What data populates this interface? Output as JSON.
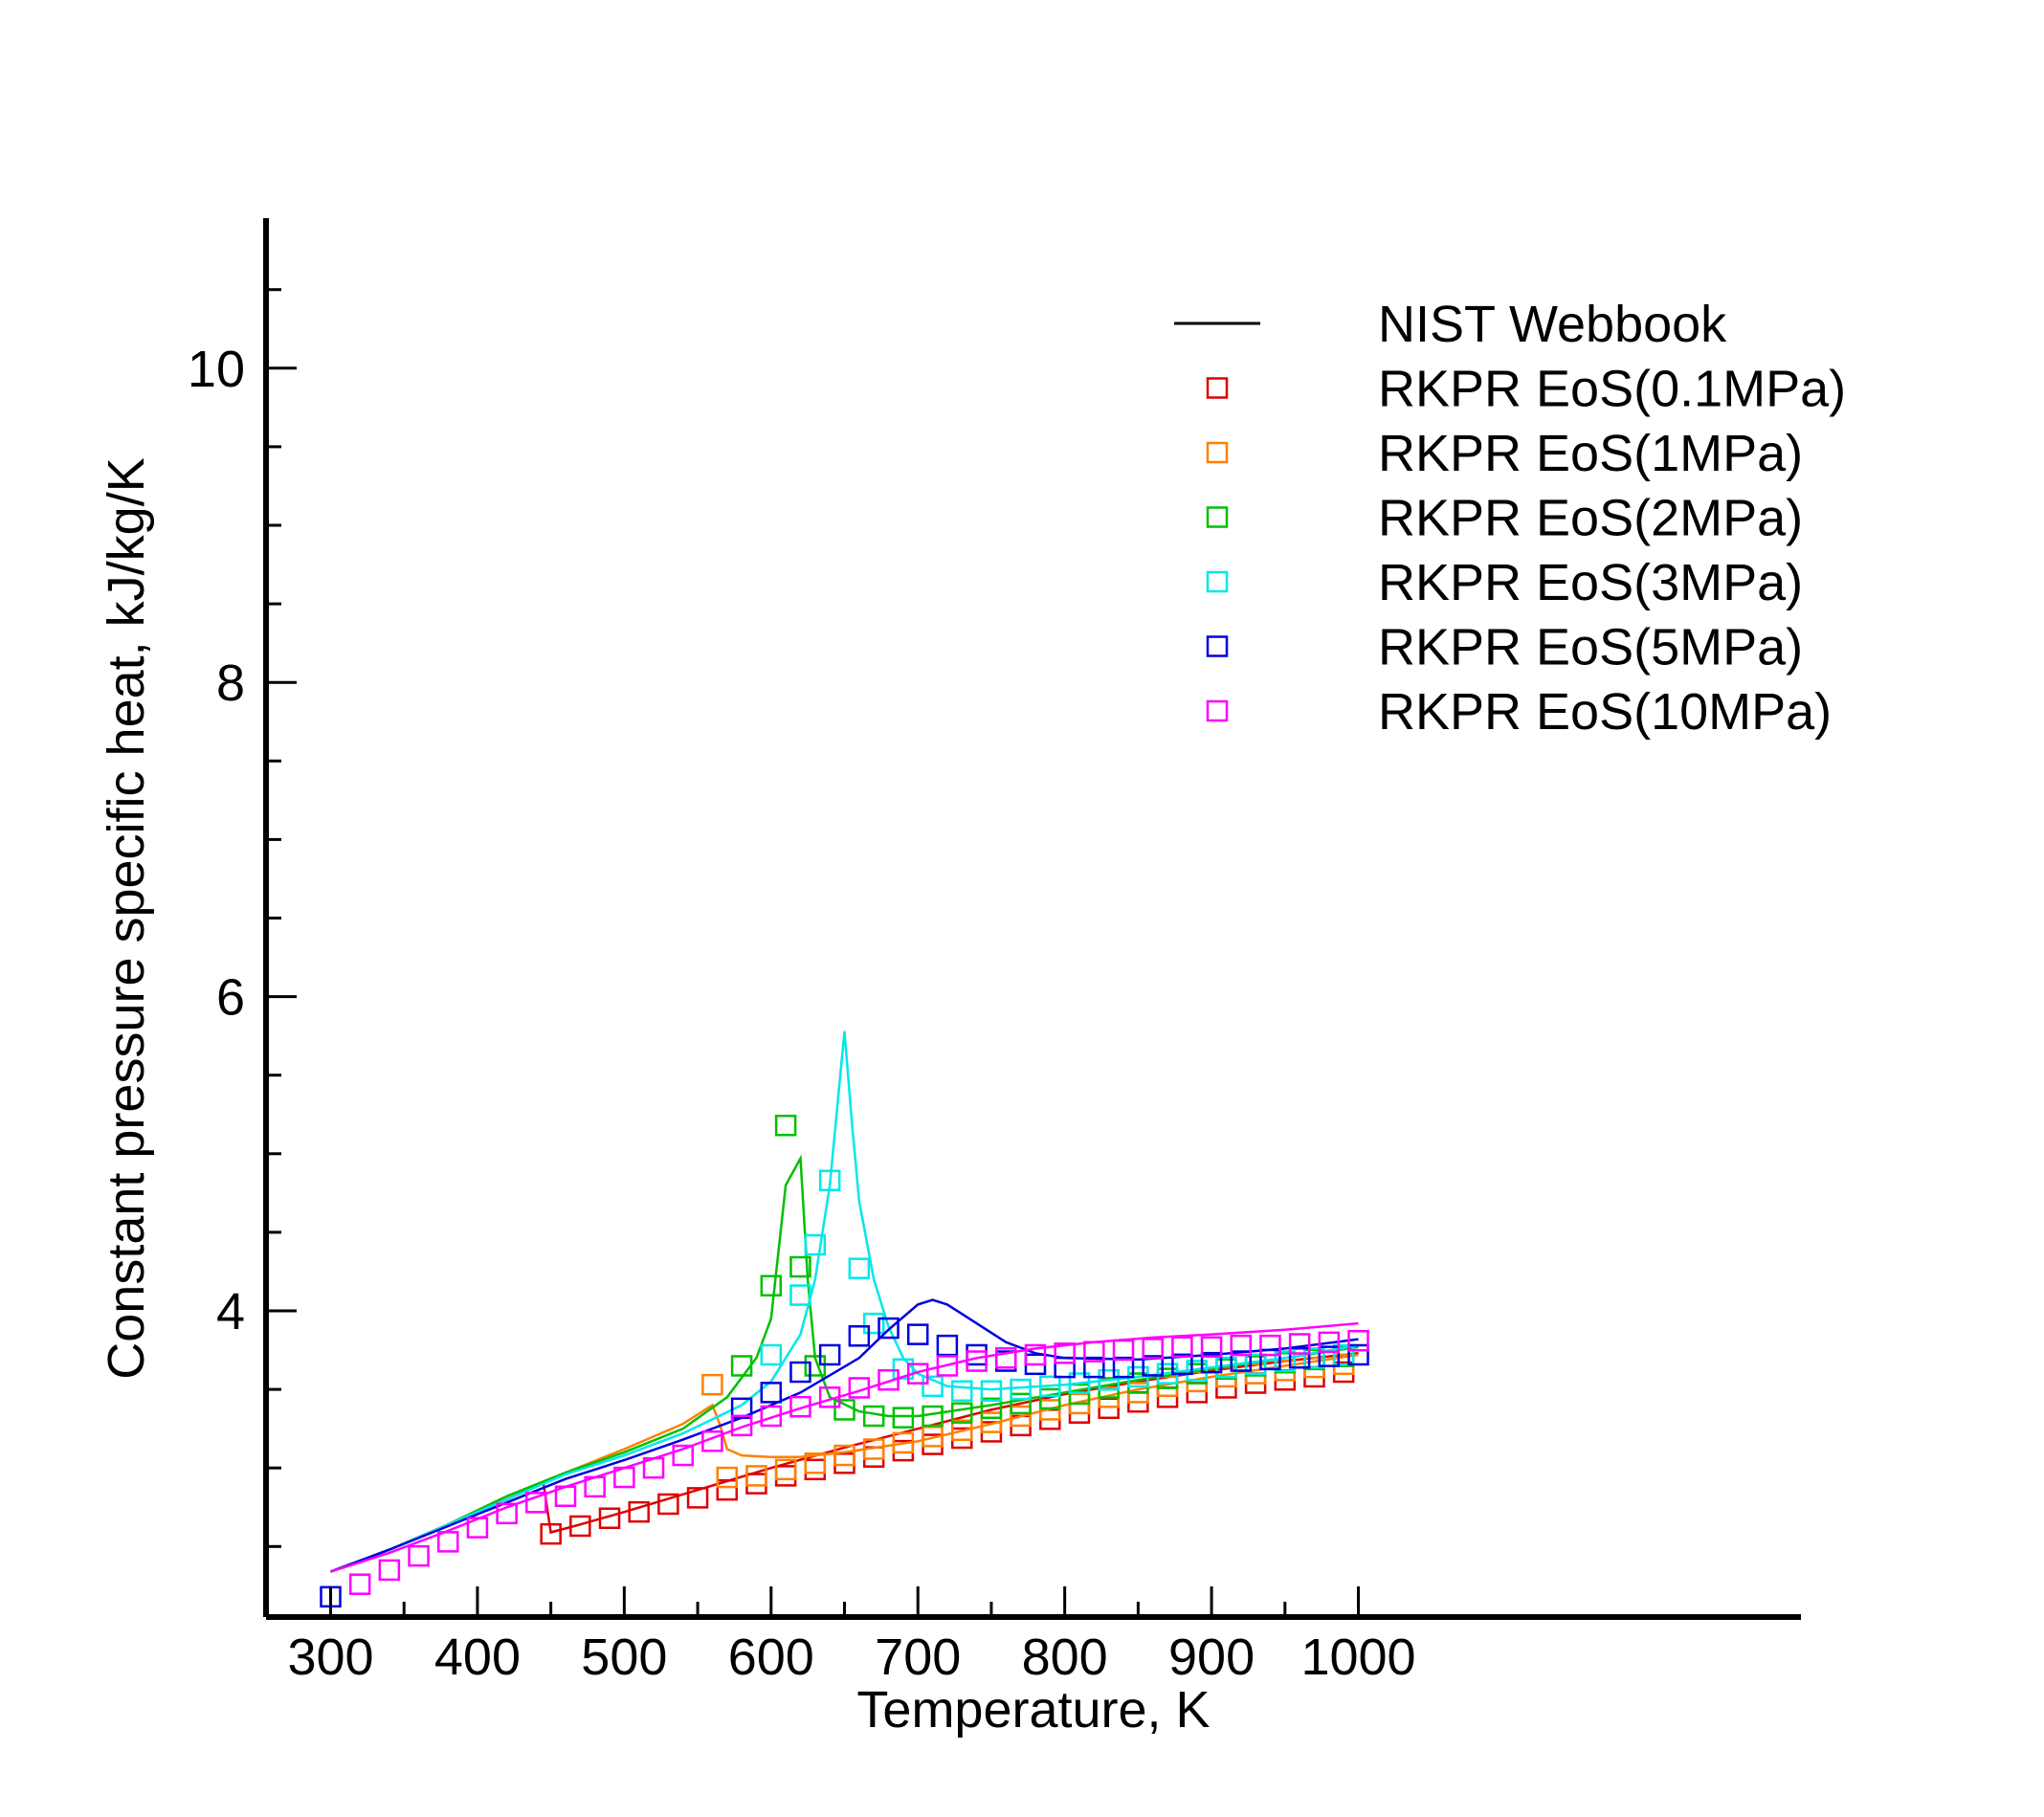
{
  "chart_data": {
    "type": "line",
    "xlabel": "Temperature, K",
    "ylabel": "Constant pressure specific heat, kJ/kg/K",
    "xlim": [
      270,
      1000
    ],
    "ylim": [
      2.2,
      10.9
    ],
    "x_ticks": [
      300,
      400,
      500,
      600,
      700,
      800,
      900,
      1000
    ],
    "x_tick_labels": [
      "300",
      "400",
      "500",
      "600",
      "700",
      "800",
      "900",
      "1000"
    ],
    "y_ticks": [
      4,
      6,
      8,
      10
    ],
    "y_tick_labels": [
      "4",
      "6",
      "8",
      "10"
    ],
    "grid": false,
    "legend_position": "top-right",
    "legend": [
      {
        "label": "NIST Webbook",
        "marker": "line",
        "color": "#000000"
      },
      {
        "label": "RKPR EoS(0.1MPa)",
        "marker": "square",
        "color": "#dd0000"
      },
      {
        "label": "RKPR EoS(1MPa)",
        "marker": "square",
        "color": "#ff8000"
      },
      {
        "label": "RKPR EoS(2MPa)",
        "marker": "square",
        "color": "#00c000"
      },
      {
        "label": "RKPR EoS(3MPa)",
        "marker": "square",
        "color": "#00e8e8"
      },
      {
        "label": "RKPR EoS(5MPa)",
        "marker": "square",
        "color": "#0000e0"
      },
      {
        "label": "RKPR EoS(10MPa)",
        "marker": "square",
        "color": "#ff00ff"
      }
    ],
    "series": [
      {
        "color": "#dd0000",
        "line": [
          [
            300,
            2.34
          ],
          [
            320,
            2.41
          ],
          [
            340,
            2.48
          ],
          [
            360,
            2.56
          ],
          [
            380,
            2.64
          ],
          [
            400,
            2.72
          ],
          [
            420,
            2.8
          ],
          [
            440,
            2.88
          ],
          [
            445,
            2.9
          ],
          [
            450,
            2.59
          ],
          [
            470,
            2.64
          ],
          [
            500,
            2.72
          ],
          [
            550,
            2.86
          ],
          [
            600,
            3.0
          ],
          [
            650,
            3.13
          ],
          [
            700,
            3.25
          ],
          [
            750,
            3.37
          ],
          [
            800,
            3.47
          ],
          [
            850,
            3.55
          ],
          [
            900,
            3.62
          ],
          [
            950,
            3.68
          ],
          [
            1000,
            3.73
          ]
        ],
        "points": [
          [
            450,
            2.58
          ],
          [
            470,
            2.63
          ],
          [
            490,
            2.68
          ],
          [
            510,
            2.72
          ],
          [
            530,
            2.77
          ],
          [
            550,
            2.81
          ],
          [
            570,
            2.86
          ],
          [
            590,
            2.9
          ],
          [
            610,
            2.95
          ],
          [
            630,
            2.99
          ],
          [
            650,
            3.03
          ],
          [
            670,
            3.07
          ],
          [
            690,
            3.11
          ],
          [
            710,
            3.15
          ],
          [
            730,
            3.19
          ],
          [
            750,
            3.23
          ],
          [
            770,
            3.27
          ],
          [
            790,
            3.31
          ],
          [
            810,
            3.35
          ],
          [
            830,
            3.38
          ],
          [
            850,
            3.42
          ],
          [
            870,
            3.45
          ],
          [
            890,
            3.48
          ],
          [
            910,
            3.51
          ],
          [
            930,
            3.54
          ],
          [
            950,
            3.56
          ],
          [
            970,
            3.58
          ],
          [
            990,
            3.61
          ]
        ]
      },
      {
        "color": "#ff8000",
        "line": [
          [
            300,
            2.34
          ],
          [
            340,
            2.48
          ],
          [
            380,
            2.64
          ],
          [
            420,
            2.82
          ],
          [
            460,
            2.97
          ],
          [
            500,
            3.12
          ],
          [
            540,
            3.28
          ],
          [
            560,
            3.4
          ],
          [
            565,
            3.28
          ],
          [
            570,
            3.12
          ],
          [
            580,
            3.08
          ],
          [
            600,
            3.07
          ],
          [
            620,
            3.07
          ],
          [
            650,
            3.1
          ],
          [
            700,
            3.17
          ],
          [
            750,
            3.28
          ],
          [
            800,
            3.4
          ],
          [
            850,
            3.5
          ],
          [
            900,
            3.58
          ],
          [
            950,
            3.65
          ],
          [
            1000,
            3.72
          ]
        ],
        "points": [
          [
            560,
            3.53
          ],
          [
            570,
            2.94
          ],
          [
            590,
            2.95
          ],
          [
            610,
            2.99
          ],
          [
            630,
            3.03
          ],
          [
            650,
            3.08
          ],
          [
            670,
            3.12
          ],
          [
            690,
            3.16
          ],
          [
            710,
            3.2
          ],
          [
            730,
            3.24
          ],
          [
            750,
            3.29
          ],
          [
            770,
            3.33
          ],
          [
            790,
            3.37
          ],
          [
            810,
            3.41
          ],
          [
            830,
            3.45
          ],
          [
            850,
            3.48
          ],
          [
            870,
            3.52
          ],
          [
            890,
            3.55
          ],
          [
            910,
            3.58
          ],
          [
            930,
            3.6
          ],
          [
            950,
            3.62
          ],
          [
            970,
            3.64
          ],
          [
            990,
            3.66
          ]
        ]
      },
      {
        "color": "#00c000",
        "line": [
          [
            300,
            2.34
          ],
          [
            340,
            2.48
          ],
          [
            380,
            2.64
          ],
          [
            420,
            2.82
          ],
          [
            460,
            2.97
          ],
          [
            500,
            3.1
          ],
          [
            540,
            3.25
          ],
          [
            570,
            3.45
          ],
          [
            590,
            3.7
          ],
          [
            600,
            3.95
          ],
          [
            610,
            4.8
          ],
          [
            620,
            4.97
          ],
          [
            625,
            4.2
          ],
          [
            630,
            3.7
          ],
          [
            640,
            3.45
          ],
          [
            660,
            3.36
          ],
          [
            680,
            3.33
          ],
          [
            700,
            3.33
          ],
          [
            750,
            3.4
          ],
          [
            800,
            3.48
          ],
          [
            850,
            3.56
          ],
          [
            900,
            3.63
          ],
          [
            950,
            3.7
          ],
          [
            1000,
            3.77
          ]
        ],
        "points": [
          [
            580,
            3.65
          ],
          [
            600,
            4.16
          ],
          [
            610,
            5.18
          ],
          [
            620,
            4.28
          ],
          [
            630,
            3.65
          ],
          [
            650,
            3.37
          ],
          [
            670,
            3.33
          ],
          [
            690,
            3.32
          ],
          [
            710,
            3.33
          ],
          [
            730,
            3.35
          ],
          [
            750,
            3.38
          ],
          [
            770,
            3.41
          ],
          [
            790,
            3.44
          ],
          [
            810,
            3.47
          ],
          [
            830,
            3.51
          ],
          [
            850,
            3.54
          ],
          [
            870,
            3.57
          ],
          [
            890,
            3.6
          ],
          [
            910,
            3.63
          ],
          [
            930,
            3.65
          ],
          [
            950,
            3.67
          ],
          [
            970,
            3.69
          ],
          [
            990,
            3.71
          ]
        ]
      },
      {
        "color": "#00e8e8",
        "line": [
          [
            300,
            2.34
          ],
          [
            340,
            2.48
          ],
          [
            380,
            2.64
          ],
          [
            420,
            2.8
          ],
          [
            460,
            2.96
          ],
          [
            500,
            3.08
          ],
          [
            540,
            3.22
          ],
          [
            580,
            3.4
          ],
          [
            600,
            3.55
          ],
          [
            620,
            3.85
          ],
          [
            630,
            4.2
          ],
          [
            640,
            4.8
          ],
          [
            650,
            5.78
          ],
          [
            655,
            5.2
          ],
          [
            660,
            4.7
          ],
          [
            670,
            4.2
          ],
          [
            680,
            3.9
          ],
          [
            690,
            3.7
          ],
          [
            700,
            3.6
          ],
          [
            720,
            3.52
          ],
          [
            750,
            3.5
          ],
          [
            800,
            3.53
          ],
          [
            850,
            3.58
          ],
          [
            900,
            3.64
          ],
          [
            950,
            3.7
          ],
          [
            1000,
            3.78
          ]
        ],
        "points": [
          [
            600,
            3.72
          ],
          [
            620,
            4.1
          ],
          [
            630,
            4.42
          ],
          [
            640,
            4.83
          ],
          [
            660,
            4.27
          ],
          [
            670,
            3.92
          ],
          [
            690,
            3.63
          ],
          [
            710,
            3.52
          ],
          [
            730,
            3.49
          ],
          [
            750,
            3.49
          ],
          [
            770,
            3.5
          ],
          [
            790,
            3.52
          ],
          [
            810,
            3.54
          ],
          [
            830,
            3.56
          ],
          [
            850,
            3.58
          ],
          [
            870,
            3.6
          ],
          [
            890,
            3.62
          ],
          [
            910,
            3.64
          ],
          [
            930,
            3.66
          ],
          [
            950,
            3.68
          ],
          [
            970,
            3.7
          ],
          [
            990,
            3.72
          ]
        ]
      },
      {
        "color": "#0000e0",
        "line": [
          [
            300,
            2.34
          ],
          [
            340,
            2.48
          ],
          [
            380,
            2.63
          ],
          [
            420,
            2.78
          ],
          [
            460,
            2.93
          ],
          [
            500,
            3.05
          ],
          [
            540,
            3.18
          ],
          [
            580,
            3.32
          ],
          [
            620,
            3.48
          ],
          [
            660,
            3.7
          ],
          [
            680,
            3.88
          ],
          [
            700,
            4.04
          ],
          [
            710,
            4.07
          ],
          [
            720,
            4.04
          ],
          [
            740,
            3.92
          ],
          [
            760,
            3.8
          ],
          [
            780,
            3.73
          ],
          [
            800,
            3.7
          ],
          [
            850,
            3.69
          ],
          [
            900,
            3.72
          ],
          [
            950,
            3.76
          ],
          [
            1000,
            3.82
          ]
        ],
        "points": [
          [
            300,
            2.18
          ],
          [
            580,
            3.38
          ],
          [
            600,
            3.48
          ],
          [
            620,
            3.61
          ],
          [
            640,
            3.72
          ],
          [
            660,
            3.84
          ],
          [
            680,
            3.89
          ],
          [
            700,
            3.85
          ],
          [
            720,
            3.78
          ],
          [
            740,
            3.72
          ],
          [
            760,
            3.68
          ],
          [
            780,
            3.66
          ],
          [
            800,
            3.64
          ],
          [
            820,
            3.64
          ],
          [
            840,
            3.64
          ],
          [
            860,
            3.65
          ],
          [
            880,
            3.66
          ],
          [
            900,
            3.67
          ],
          [
            920,
            3.68
          ],
          [
            940,
            3.69
          ],
          [
            960,
            3.7
          ],
          [
            980,
            3.71
          ],
          [
            1000,
            3.72
          ]
        ]
      },
      {
        "color": "#ff00ff",
        "line": [
          [
            300,
            2.34
          ],
          [
            340,
            2.46
          ],
          [
            380,
            2.6
          ],
          [
            420,
            2.75
          ],
          [
            460,
            2.88
          ],
          [
            500,
            3.0
          ],
          [
            540,
            3.12
          ],
          [
            580,
            3.26
          ],
          [
            620,
            3.38
          ],
          [
            660,
            3.49
          ],
          [
            700,
            3.61
          ],
          [
            740,
            3.7
          ],
          [
            780,
            3.76
          ],
          [
            820,
            3.8
          ],
          [
            860,
            3.83
          ],
          [
            900,
            3.85
          ],
          [
            950,
            3.88
          ],
          [
            1000,
            3.92
          ]
        ],
        "points": [
          [
            320,
            2.26
          ],
          [
            340,
            2.35
          ],
          [
            360,
            2.44
          ],
          [
            380,
            2.53
          ],
          [
            400,
            2.62
          ],
          [
            420,
            2.71
          ],
          [
            440,
            2.78
          ],
          [
            460,
            2.82
          ],
          [
            480,
            2.88
          ],
          [
            500,
            2.94
          ],
          [
            520,
            3.0
          ],
          [
            540,
            3.08
          ],
          [
            560,
            3.17
          ],
          [
            580,
            3.27
          ],
          [
            600,
            3.33
          ],
          [
            620,
            3.39
          ],
          [
            640,
            3.45
          ],
          [
            660,
            3.51
          ],
          [
            680,
            3.56
          ],
          [
            700,
            3.6
          ],
          [
            720,
            3.65
          ],
          [
            740,
            3.68
          ],
          [
            760,
            3.7
          ],
          [
            780,
            3.72
          ],
          [
            800,
            3.73
          ],
          [
            820,
            3.74
          ],
          [
            840,
            3.75
          ],
          [
            860,
            3.76
          ],
          [
            880,
            3.77
          ],
          [
            900,
            3.77
          ],
          [
            920,
            3.78
          ],
          [
            940,
            3.78
          ],
          [
            960,
            3.79
          ],
          [
            980,
            3.8
          ],
          [
            1000,
            3.81
          ]
        ]
      }
    ]
  }
}
